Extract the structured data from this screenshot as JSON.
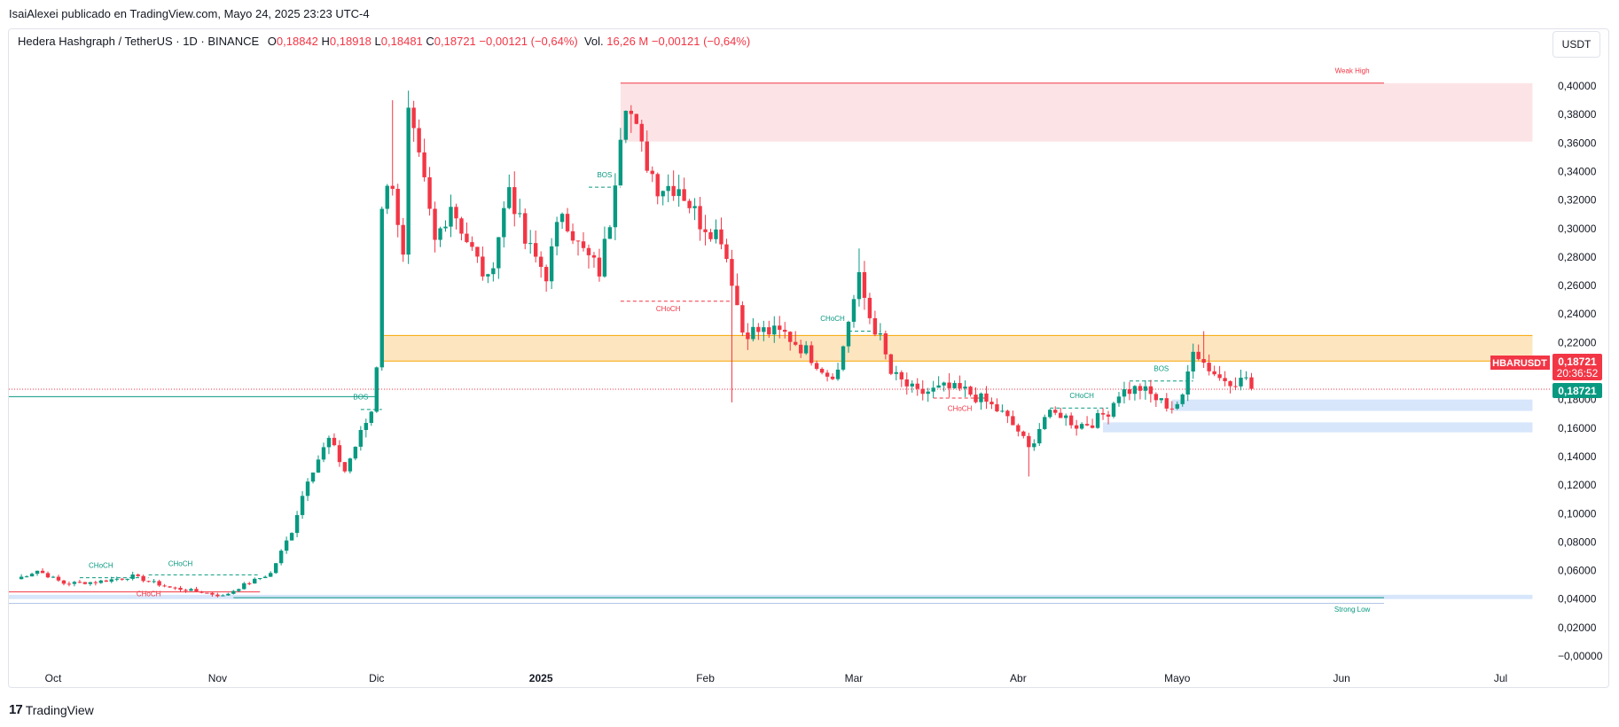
{
  "header": {
    "published": "IsaiAlexei publicado en TradingView.com, Mayo 24, 2025 23:23 UTC-4"
  },
  "legend": {
    "symbol": "Hedera Hashgraph / TetherUS · 1D · BINANCE",
    "o_label": "O",
    "o": "0,18842",
    "h_label": "H",
    "h": "0,18918",
    "l_label": "L",
    "l": "0,18481",
    "c_label": "C",
    "c": "0,18721",
    "chg": "−0,00121 (−0,64%)",
    "vol_label": "Vol.",
    "vol": "16,26 M",
    "vol_chg": "−0,00121 (−0,64%)"
  },
  "unit_button": "USDT",
  "price_tags": {
    "ticker": "HBARUSDT",
    "last": "0,18721",
    "countdown": "20:36:52",
    "last2": "0,18721"
  },
  "brand": "TradingView",
  "colors": {
    "up": "#089981",
    "down": "#f23645",
    "supply": "#fce4e6",
    "ob": "#fde5c0",
    "demand": "#d7e6fb"
  },
  "chart_data": {
    "type": "candlestick",
    "ylim": [
      -0.002,
      0.42
    ],
    "yticks": [
      {
        "v": 0.4,
        "label": "0,40000"
      },
      {
        "v": 0.38,
        "label": "0,38000"
      },
      {
        "v": 0.36,
        "label": "0,36000"
      },
      {
        "v": 0.34,
        "label": "0,34000"
      },
      {
        "v": 0.32,
        "label": "0,32000"
      },
      {
        "v": 0.3,
        "label": "0,30000"
      },
      {
        "v": 0.28,
        "label": "0,28000"
      },
      {
        "v": 0.26,
        "label": "0,26000"
      },
      {
        "v": 0.24,
        "label": "0,24000"
      },
      {
        "v": 0.22,
        "label": "0,22000"
      },
      {
        "v": 0.18,
        "label": "0,18000"
      },
      {
        "v": 0.16,
        "label": "0,16000"
      },
      {
        "v": 0.14,
        "label": "0,14000"
      },
      {
        "v": 0.12,
        "label": "0,12000"
      },
      {
        "v": 0.1,
        "label": "0,10000"
      },
      {
        "v": 0.08,
        "label": "0,08000"
      },
      {
        "v": 0.06,
        "label": "0,06000"
      },
      {
        "v": 0.04,
        "label": "0,04000"
      },
      {
        "v": 0.02,
        "label": "0,02000"
      },
      {
        "v": 0.0,
        "label": "−0,00000"
      }
    ],
    "xticks": [
      {
        "d": 0,
        "label": "Oct",
        "bold": false
      },
      {
        "d": 31,
        "label": "Nov",
        "bold": false
      },
      {
        "d": 61,
        "label": "Dic",
        "bold": false
      },
      {
        "d": 92,
        "label": "2025",
        "bold": true
      },
      {
        "d": 123,
        "label": "Feb",
        "bold": false
      },
      {
        "d": 151,
        "label": "Mar",
        "bold": false
      },
      {
        "d": 182,
        "label": "Abr",
        "bold": false
      },
      {
        "d": 212,
        "label": "Mayo",
        "bold": false
      },
      {
        "d": 243,
        "label": "Jun",
        "bold": false
      },
      {
        "d": 273,
        "label": "Jul",
        "bold": false
      }
    ],
    "day0": "2024-10-01",
    "last_price": 0.18721,
    "anchors": [
      [
        -7,
        0.054
      ],
      [
        -3,
        0.06
      ],
      [
        2,
        0.051
      ],
      [
        8,
        0.052
      ],
      [
        15,
        0.056
      ],
      [
        22,
        0.048
      ],
      [
        28,
        0.045
      ],
      [
        32,
        0.042
      ],
      [
        36,
        0.05
      ],
      [
        41,
        0.058
      ],
      [
        45,
        0.088
      ],
      [
        48,
        0.125
      ],
      [
        52,
        0.152
      ],
      [
        55,
        0.13
      ],
      [
        58,
        0.156
      ],
      [
        60,
        0.172
      ],
      [
        61,
        0.205
      ],
      [
        62,
        0.318
      ],
      [
        64,
        0.334
      ],
      [
        66,
        0.278
      ],
      [
        67,
        0.378
      ],
      [
        70,
        0.33
      ],
      [
        72,
        0.29
      ],
      [
        75,
        0.318
      ],
      [
        78,
        0.292
      ],
      [
        82,
        0.262
      ],
      [
        86,
        0.33
      ],
      [
        89,
        0.29
      ],
      [
        93,
        0.268
      ],
      [
        96,
        0.314
      ],
      [
        99,
        0.288
      ],
      [
        103,
        0.27
      ],
      [
        105,
        0.306
      ],
      [
        107,
        0.37
      ],
      [
        108,
        0.392
      ],
      [
        111,
        0.355
      ],
      [
        114,
        0.33
      ],
      [
        118,
        0.33
      ],
      [
        122,
        0.305
      ],
      [
        126,
        0.295
      ],
      [
        128,
        0.265
      ],
      [
        130,
        0.228
      ],
      [
        134,
        0.228
      ],
      [
        138,
        0.226
      ],
      [
        142,
        0.214
      ],
      [
        146,
        0.198
      ],
      [
        148,
        0.2
      ],
      [
        150,
        0.236
      ],
      [
        152,
        0.264
      ],
      [
        154,
        0.238
      ],
      [
        156,
        0.222
      ],
      [
        158,
        0.198
      ],
      [
        163,
        0.184
      ],
      [
        168,
        0.188
      ],
      [
        172,
        0.186
      ],
      [
        176,
        0.178
      ],
      [
        179,
        0.17
      ],
      [
        182,
        0.158
      ],
      [
        184,
        0.145
      ],
      [
        187,
        0.168
      ],
      [
        190,
        0.17
      ],
      [
        193,
        0.162
      ],
      [
        196,
        0.164
      ],
      [
        199,
        0.172
      ],
      [
        201,
        0.185
      ],
      [
        205,
        0.188
      ],
      [
        209,
        0.178
      ],
      [
        211,
        0.175
      ],
      [
        213,
        0.18
      ],
      [
        215,
        0.218
      ],
      [
        217,
        0.206
      ],
      [
        220,
        0.195
      ],
      [
        224,
        0.193
      ],
      [
        225,
        0.196
      ],
      [
        226,
        0.187
      ]
    ],
    "spikes": [
      {
        "d": 64,
        "h": 0.39
      },
      {
        "d": 67,
        "h": 0.385
      },
      {
        "d": 128,
        "h": 0.285
      },
      {
        "d": 152,
        "h": 0.286
      },
      {
        "d": 184,
        "h": 0.126,
        "low": true
      },
      {
        "d": 128,
        "h": 0.178,
        "low": true
      },
      {
        "d": 217,
        "h": 0.228
      }
    ],
    "zones": [
      {
        "kind": "supply",
        "x0": 107,
        "x1": 279,
        "y0": 0.361,
        "y1": 0.402
      },
      {
        "kind": "ob",
        "x0": 62,
        "x1": 279,
        "y0": 0.207,
        "y1": 0.225
      },
      {
        "kind": "demand",
        "x0": 211,
        "x1": 279,
        "y0": 0.172,
        "y1": 0.18
      },
      {
        "kind": "demand",
        "x0": 198,
        "x1": 279,
        "y0": 0.157,
        "y1": 0.164
      },
      {
        "kind": "demand",
        "x0": -10,
        "x1": 279,
        "y0": 0.04,
        "y1": 0.043
      }
    ],
    "hlines": [
      {
        "d0": 107,
        "d1": 251,
        "v": 0.402,
        "color": "#f23645"
      },
      {
        "d0": -10,
        "d1": 61,
        "v": 0.182,
        "color": "#089981"
      },
      {
        "d0": -10,
        "d1": 39,
        "v": 0.045,
        "color": "#f23645"
      },
      {
        "d0": 34,
        "d1": 251,
        "v": 0.041,
        "color": "#089981"
      },
      {
        "d0": -10,
        "d1": 251,
        "v": 0.037,
        "color": "#b2c5e6"
      }
    ],
    "dashed": [
      {
        "d0": 58,
        "d1": 62,
        "v": 0.173,
        "color": "#089981"
      },
      {
        "d0": 101,
        "d1": 107,
        "v": 0.329,
        "color": "#089981"
      },
      {
        "d0": 107,
        "d1": 128,
        "v": 0.249,
        "color": "#f23645"
      },
      {
        "d0": 150,
        "d1": 156,
        "v": 0.228,
        "color": "#089981"
      },
      {
        "d0": 166,
        "d1": 176,
        "v": 0.181,
        "color": "#f23645"
      },
      {
        "d0": 188,
        "d1": 199,
        "v": 0.174,
        "color": "#089981"
      },
      {
        "d0": 203,
        "d1": 215,
        "v": 0.193,
        "color": "#089981"
      },
      {
        "d0": 5,
        "d1": 18,
        "v": 0.055,
        "color": "#089981"
      },
      {
        "d0": 18,
        "d1": 39,
        "v": 0.057,
        "color": "#089981"
      }
    ],
    "labels": [
      {
        "d": 58,
        "v": 0.18,
        "text": "BOS",
        "color": "#089981"
      },
      {
        "d": 104,
        "v": 0.336,
        "text": "BOS",
        "color": "#089981"
      },
      {
        "d": 116,
        "v": 0.242,
        "text": "CHoCH",
        "color": "#f23645"
      },
      {
        "d": 147,
        "v": 0.235,
        "text": "CHoCH",
        "color": "#089981"
      },
      {
        "d": 171,
        "v": 0.172,
        "text": "CHoCH",
        "color": "#f23645"
      },
      {
        "d": 194,
        "v": 0.181,
        "text": "CHoCH",
        "color": "#089981"
      },
      {
        "d": 209,
        "v": 0.2,
        "text": "BOS",
        "color": "#089981"
      },
      {
        "d": 9,
        "v": 0.062,
        "text": "CHoCH",
        "color": "#089981"
      },
      {
        "d": 24,
        "v": 0.063,
        "text": "CHoCH",
        "color": "#089981"
      },
      {
        "d": 18,
        "v": 0.042,
        "text": "CHoCH",
        "color": "#f23645"
      },
      {
        "d": 245,
        "v": 0.409,
        "text": "Weak High",
        "color": "#f23645"
      },
      {
        "d": 245,
        "v": 0.031,
        "text": "Strong Low",
        "color": "#089981"
      }
    ]
  }
}
